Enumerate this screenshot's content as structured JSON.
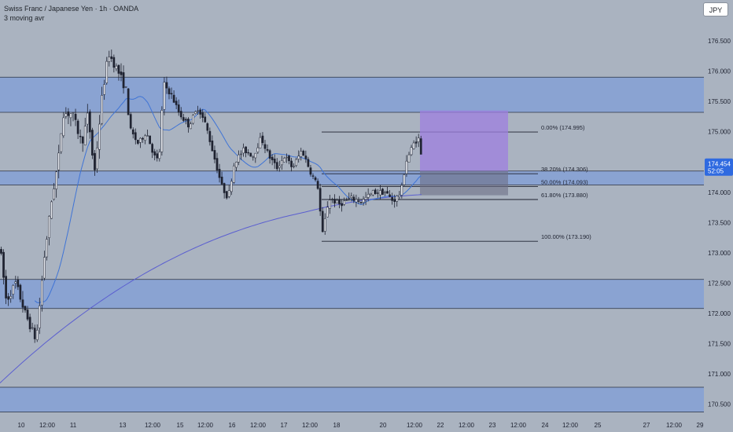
{
  "header": {
    "title": "Swiss Franc / Japanese Yen · 1h · OANDA",
    "subtitle": "3 moving avr"
  },
  "currency_button": "JPY",
  "colors": {
    "background": "#aab3c0",
    "zone": "#8aa3d2",
    "zone_line": "#2b3140",
    "ma_fast": "#3f74d6",
    "ma_slow": "#5b5fd0",
    "candle": "#1e2230",
    "price_label_bg": "#2f6ae0",
    "projection": "#9d7fe0",
    "projection_dark": "#6d6e86"
  },
  "chart_data": {
    "type": "candlestick",
    "symbol": "CHFJPY",
    "interval": "1h",
    "y_ticks": [
      "176.500",
      "176.000",
      "175.500",
      "175.000",
      "174.500",
      "174.000",
      "173.500",
      "173.000",
      "172.500",
      "172.000",
      "171.500",
      "171.000",
      "170.500"
    ],
    "y_tick_values": [
      176.5,
      176.0,
      175.5,
      175.0,
      174.5,
      174.0,
      173.5,
      173.0,
      172.5,
      172.0,
      171.5,
      171.0,
      170.5
    ],
    "ylim": [
      170.37,
      177.25
    ],
    "x_ticks": [
      "10",
      "12:00",
      "11",
      "13",
      "12:00",
      "15",
      "12:00",
      "16",
      "12:00",
      "17",
      "12:00",
      "18",
      "20",
      "12:00",
      "22",
      "12:00",
      "23",
      "12:00",
      "24",
      "12:00",
      "25",
      "27",
      "12:00",
      "29"
    ],
    "current_price": "174.454",
    "countdown": "52:05",
    "zones": [
      {
        "top": 175.9,
        "bottom": 175.32
      },
      {
        "top": 174.35,
        "bottom": 174.12
      },
      {
        "top": 172.56,
        "bottom": 172.08
      },
      {
        "top": 170.78,
        "bottom": 170.37
      }
    ],
    "fib_levels": [
      {
        "label": "0.00% (174.995)",
        "value": 174.995
      },
      {
        "label": "38.20% (174.306)",
        "value": 174.306
      },
      {
        "label": "50.00% (174.093)",
        "value": 174.093
      },
      {
        "label": "61.80% (173.880)",
        "value": 173.88
      },
      {
        "label": "100.00% (173.190)",
        "value": 173.19
      }
    ],
    "projection_box": {
      "target": 175.35,
      "entry": 174.35,
      "stop": 173.95
    }
  }
}
